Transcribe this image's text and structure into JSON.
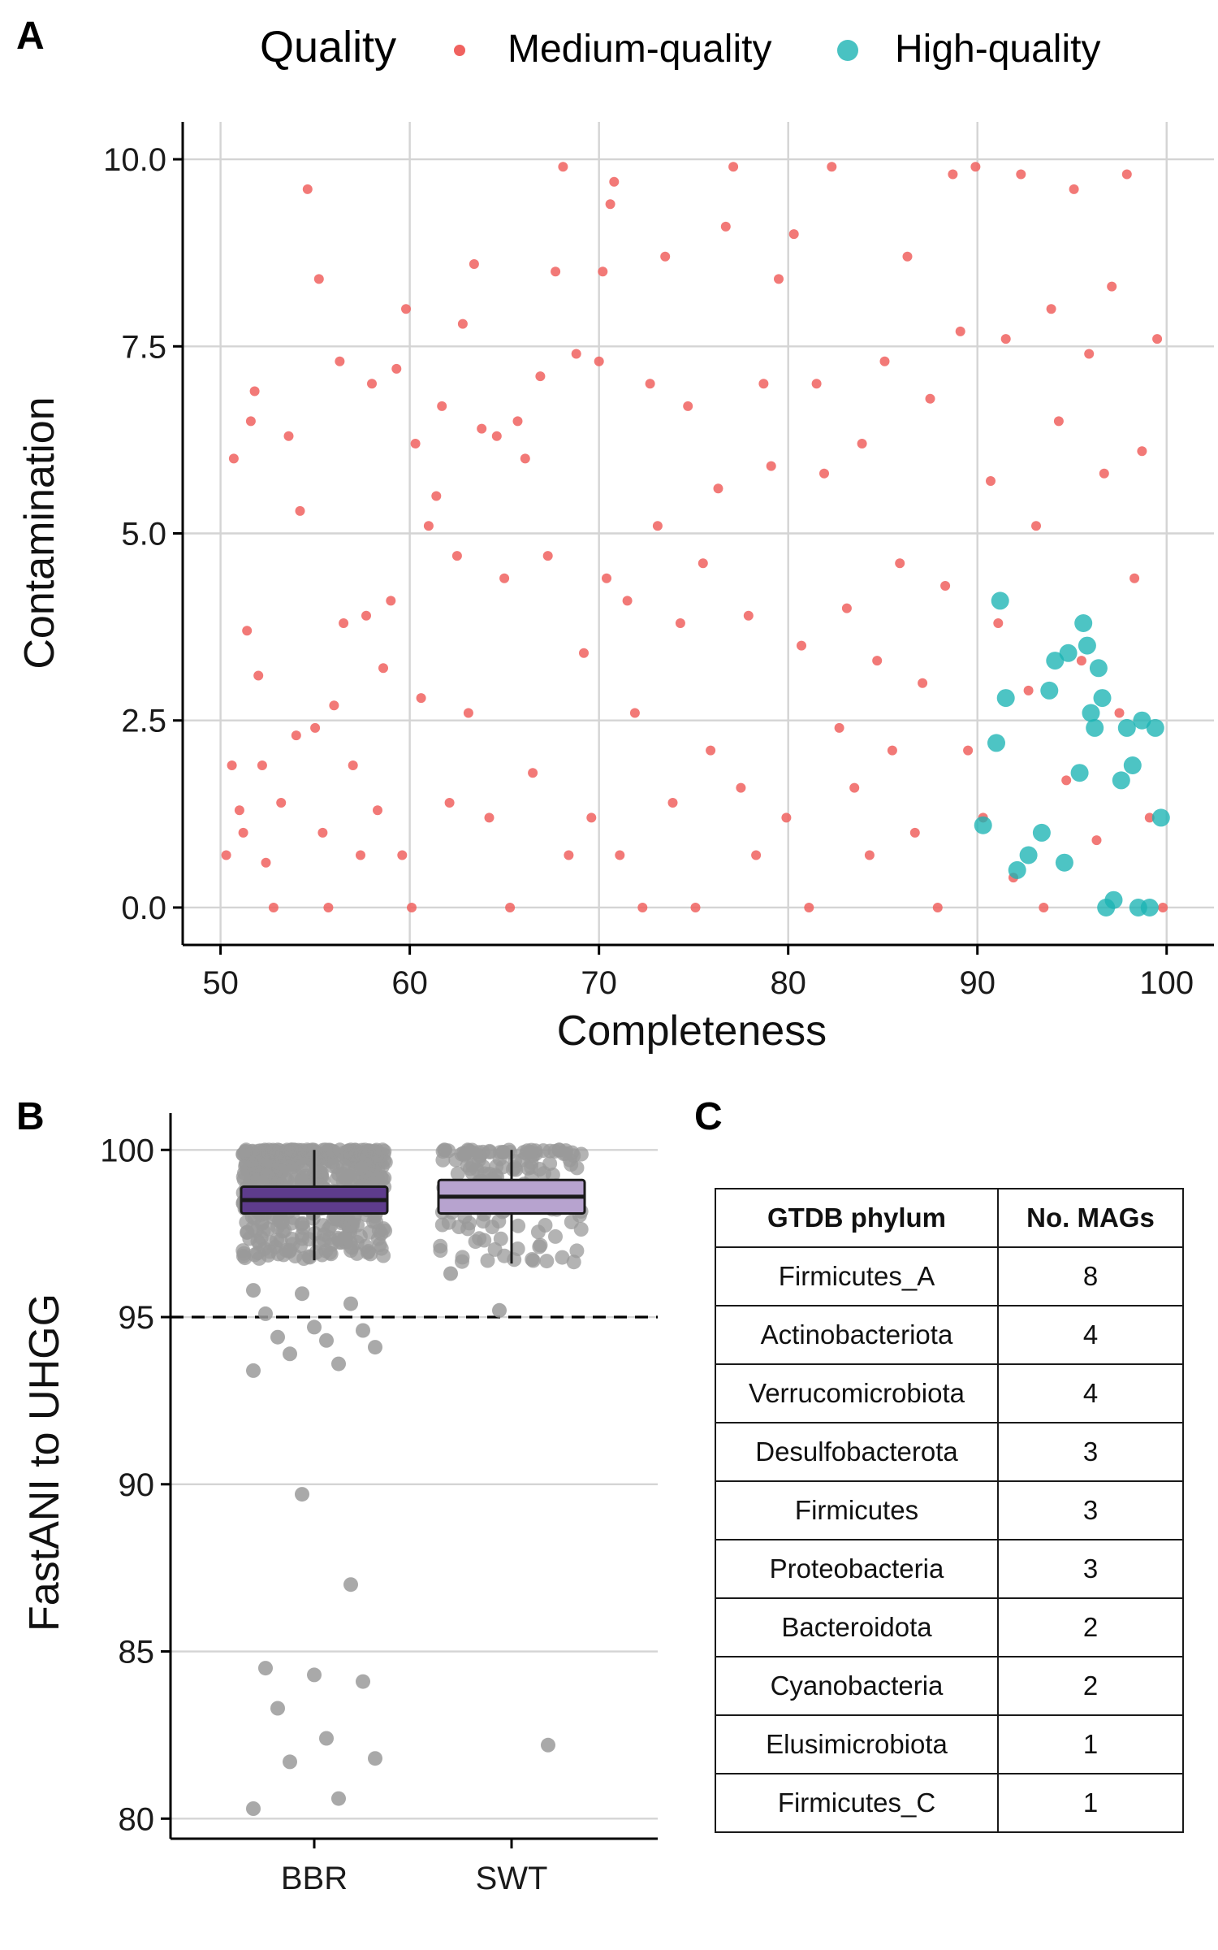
{
  "panels": {
    "a": "A",
    "b": "B",
    "c": "C"
  },
  "colors": {
    "medium": "#F0625F",
    "high": "#1BB3B3",
    "box_bbr": "#5E3C8C",
    "box_swt": "#B7A3CF",
    "jitter": "#9A9A9A"
  },
  "chart_data": [
    {
      "type": "scatter",
      "panel": "A",
      "xlabel": "Completeness",
      "ylabel": "Contamination",
      "xlim": [
        48,
        102.5
      ],
      "ylim": [
        -0.5,
        10.5
      ],
      "x_ticks": [
        50,
        60,
        70,
        80,
        90,
        100
      ],
      "y_ticks": [
        0.0,
        2.5,
        5.0,
        7.5,
        10.0
      ],
      "y_tick_labels": [
        "0.0",
        "2.5",
        "5.0",
        "7.5",
        "10.0"
      ],
      "grid": true,
      "legend": {
        "title": "Quality",
        "position": "top",
        "entries": [
          "Medium-quality",
          "High-quality"
        ]
      },
      "series": [
        {
          "name": "Medium-quality",
          "points": [
            [
              50.3,
              0.7
            ],
            [
              50.6,
              1.9
            ],
            [
              50.7,
              6.0
            ],
            [
              51.0,
              1.3
            ],
            [
              51.2,
              1.0
            ],
            [
              51.4,
              3.7
            ],
            [
              51.6,
              6.5
            ],
            [
              51.8,
              6.9
            ],
            [
              52.0,
              3.1
            ],
            [
              52.2,
              1.9
            ],
            [
              52.4,
              0.6
            ],
            [
              52.8,
              0.0
            ],
            [
              53.2,
              1.4
            ],
            [
              53.6,
              6.3
            ],
            [
              54.0,
              2.3
            ],
            [
              54.2,
              5.3
            ],
            [
              54.6,
              9.6
            ],
            [
              55.0,
              2.4
            ],
            [
              55.2,
              8.4
            ],
            [
              55.4,
              1.0
            ],
            [
              55.7,
              0.0
            ],
            [
              56.0,
              2.7
            ],
            [
              56.3,
              7.3
            ],
            [
              56.5,
              3.8
            ],
            [
              57.0,
              1.9
            ],
            [
              57.4,
              0.7
            ],
            [
              57.7,
              3.9
            ],
            [
              58.0,
              7.0
            ],
            [
              58.3,
              1.3
            ],
            [
              58.6,
              3.2
            ],
            [
              59.0,
              4.1
            ],
            [
              59.3,
              7.2
            ],
            [
              59.6,
              0.7
            ],
            [
              59.8,
              8.0
            ],
            [
              60.1,
              0.0
            ],
            [
              60.3,
              6.2
            ],
            [
              60.6,
              2.8
            ],
            [
              61.0,
              5.1
            ],
            [
              61.4,
              5.5
            ],
            [
              61.7,
              6.7
            ],
            [
              62.1,
              1.4
            ],
            [
              62.5,
              4.7
            ],
            [
              62.8,
              7.8
            ],
            [
              63.1,
              2.6
            ],
            [
              63.4,
              8.6
            ],
            [
              63.8,
              6.4
            ],
            [
              64.2,
              1.2
            ],
            [
              64.6,
              6.3
            ],
            [
              65.0,
              4.4
            ],
            [
              65.3,
              0.0
            ],
            [
              65.7,
              6.5
            ],
            [
              66.1,
              6.0
            ],
            [
              66.5,
              1.8
            ],
            [
              66.9,
              7.1
            ],
            [
              67.3,
              4.7
            ],
            [
              67.7,
              8.5
            ],
            [
              68.1,
              9.9
            ],
            [
              68.4,
              0.7
            ],
            [
              68.8,
              7.4
            ],
            [
              69.2,
              3.4
            ],
            [
              69.6,
              1.2
            ],
            [
              70.0,
              7.3
            ],
            [
              70.2,
              8.5
            ],
            [
              70.4,
              4.4
            ],
            [
              70.6,
              9.4
            ],
            [
              70.8,
              9.7
            ],
            [
              71.1,
              0.7
            ],
            [
              71.5,
              4.1
            ],
            [
              71.9,
              2.6
            ],
            [
              72.3,
              0.0
            ],
            [
              72.7,
              7.0
            ],
            [
              73.1,
              5.1
            ],
            [
              73.5,
              8.7
            ],
            [
              73.9,
              1.4
            ],
            [
              74.3,
              3.8
            ],
            [
              74.7,
              6.7
            ],
            [
              75.1,
              0.0
            ],
            [
              75.5,
              4.6
            ],
            [
              75.9,
              2.1
            ],
            [
              76.3,
              5.6
            ],
            [
              76.7,
              9.1
            ],
            [
              77.1,
              9.9
            ],
            [
              77.5,
              1.6
            ],
            [
              77.9,
              3.9
            ],
            [
              78.3,
              0.7
            ],
            [
              78.7,
              7.0
            ],
            [
              79.1,
              5.9
            ],
            [
              79.5,
              8.4
            ],
            [
              79.9,
              1.2
            ],
            [
              80.3,
              9.0
            ],
            [
              80.7,
              3.5
            ],
            [
              81.1,
              0.0
            ],
            [
              81.5,
              7.0
            ],
            [
              81.9,
              5.8
            ],
            [
              82.3,
              9.9
            ],
            [
              82.7,
              2.4
            ],
            [
              83.1,
              4.0
            ],
            [
              83.5,
              1.6
            ],
            [
              83.9,
              6.2
            ],
            [
              84.3,
              0.7
            ],
            [
              84.7,
              3.3
            ],
            [
              85.1,
              7.3
            ],
            [
              85.5,
              2.1
            ],
            [
              85.9,
              4.6
            ],
            [
              86.3,
              8.7
            ],
            [
              86.7,
              1.0
            ],
            [
              87.1,
              3.0
            ],
            [
              87.5,
              6.8
            ],
            [
              87.9,
              0.0
            ],
            [
              88.3,
              4.3
            ],
            [
              88.7,
              9.8
            ],
            [
              89.1,
              7.7
            ],
            [
              89.5,
              2.1
            ],
            [
              89.9,
              9.9
            ],
            [
              90.3,
              1.2
            ],
            [
              90.7,
              5.7
            ],
            [
              91.1,
              3.8
            ],
            [
              91.5,
              7.6
            ],
            [
              91.9,
              0.4
            ],
            [
              92.3,
              9.8
            ],
            [
              92.7,
              2.9
            ],
            [
              93.1,
              5.1
            ],
            [
              93.5,
              0.0
            ],
            [
              93.9,
              8.0
            ],
            [
              94.3,
              6.5
            ],
            [
              94.7,
              1.7
            ],
            [
              95.1,
              9.6
            ],
            [
              95.5,
              3.3
            ],
            [
              95.9,
              7.4
            ],
            [
              96.3,
              0.9
            ],
            [
              96.7,
              5.8
            ],
            [
              97.1,
              8.3
            ],
            [
              97.5,
              2.6
            ],
            [
              97.9,
              9.8
            ],
            [
              98.3,
              4.4
            ],
            [
              98.7,
              6.1
            ],
            [
              99.1,
              1.2
            ],
            [
              99.5,
              7.6
            ],
            [
              99.8,
              0.0
            ]
          ]
        },
        {
          "name": "High-quality",
          "points": [
            [
              90.3,
              1.1
            ],
            [
              91.0,
              2.2
            ],
            [
              91.2,
              4.1
            ],
            [
              91.5,
              2.8
            ],
            [
              92.1,
              0.5
            ],
            [
              92.7,
              0.7
            ],
            [
              93.4,
              1.0
            ],
            [
              93.8,
              2.9
            ],
            [
              94.1,
              3.3
            ],
            [
              94.6,
              0.6
            ],
            [
              94.8,
              3.4
            ],
            [
              95.4,
              1.8
            ],
            [
              95.6,
              3.8
            ],
            [
              95.8,
              3.5
            ],
            [
              96.0,
              2.6
            ],
            [
              96.2,
              2.4
            ],
            [
              96.4,
              3.2
            ],
            [
              96.6,
              2.8
            ],
            [
              96.8,
              0.0
            ],
            [
              97.2,
              0.1
            ],
            [
              97.6,
              1.7
            ],
            [
              97.9,
              2.4
            ],
            [
              98.2,
              1.9
            ],
            [
              98.5,
              0.0
            ],
            [
              98.7,
              2.5
            ],
            [
              99.1,
              0.0
            ],
            [
              99.4,
              2.4
            ],
            [
              99.7,
              1.2
            ]
          ]
        }
      ]
    },
    {
      "type": "box",
      "panel": "B",
      "ylabel": "FastANI to UHGG",
      "categories": [
        "BBR",
        "SWT"
      ],
      "ylim": [
        79.4,
        101.1
      ],
      "y_ticks": [
        80,
        85,
        90,
        95,
        100
      ],
      "reference_line": 95,
      "grid": true,
      "boxes": [
        {
          "category": "BBR",
          "q1": 98.1,
          "median": 98.5,
          "q3": 98.9,
          "whisker_low": 96.7,
          "whisker_high": 100
        },
        {
          "category": "SWT",
          "q1": 98.1,
          "median": 98.6,
          "q3": 99.1,
          "whisker_low": 96.6,
          "whisker_high": 100
        }
      ],
      "outliers": [
        {
          "category": "BBR",
          "values": [
            95.8,
            95.7,
            95.4,
            95.1,
            94.7,
            94.6,
            94.4,
            94.3,
            94.1,
            93.9,
            93.6,
            93.4,
            89.7,
            87.0,
            84.5,
            84.3,
            84.1,
            83.3,
            82.4,
            81.8,
            81.7,
            80.6,
            80.3
          ]
        },
        {
          "category": "SWT",
          "values": [
            96.3,
            95.2,
            82.2
          ]
        }
      ]
    },
    {
      "type": "table",
      "panel": "C",
      "columns": [
        "GTDB phylum",
        "No. MAGs"
      ],
      "rows": [
        [
          "Firmicutes_A",
          "8"
        ],
        [
          "Actinobacteriota",
          "4"
        ],
        [
          "Verrucomicrobiota",
          "4"
        ],
        [
          "Desulfobacterota",
          "3"
        ],
        [
          "Firmicutes",
          "3"
        ],
        [
          "Proteobacteria",
          "3"
        ],
        [
          "Bacteroidota",
          "2"
        ],
        [
          "Cyanobacteria",
          "2"
        ],
        [
          "Elusimicrobiota",
          "1"
        ],
        [
          "Firmicutes_C",
          "1"
        ]
      ]
    }
  ]
}
